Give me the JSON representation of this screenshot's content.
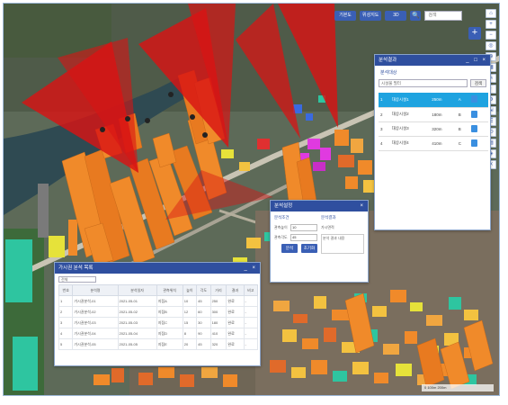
{
  "toolbar": {
    "buttons": [
      "기본도",
      "위성지도",
      "3D"
    ],
    "search_placeholder": "검색",
    "search_go": "🔍"
  },
  "right_tools": [
    "⌂",
    "+",
    "−",
    "◎",
    "⊕",
    "▦",
    "✎",
    "◐",
    "⚙",
    "⇲",
    "☰",
    "⟲",
    "▤",
    "◈",
    "✕"
  ],
  "plus_label": "+",
  "results_panel": {
    "title": "분석결과",
    "close": "_ □ ×",
    "subtitle": "분석대상",
    "filter_select": "시설물 필터",
    "filter_button": "검색",
    "rows": [
      [
        "1",
        "대상시설1",
        "250m",
        "A",
        "●"
      ],
      [
        "2",
        "대상시설2",
        "180m",
        "B",
        "●"
      ],
      [
        "3",
        "대상시설3",
        "320m",
        "B",
        "●"
      ],
      [
        "4",
        "대상시설4",
        "410m",
        "C",
        "●"
      ]
    ]
  },
  "analysis_popup": {
    "title": "분석설정",
    "close": "×",
    "left_title": "분석조건",
    "right_title": "분석결과",
    "fields": [
      {
        "label": "관측높이",
        "value": "10"
      },
      {
        "label": "관측각도",
        "value": "45"
      }
    ],
    "result_label": "가시면적",
    "note": "분석 결과 내용",
    "buttons": [
      "분석",
      "초기화"
    ]
  },
  "list_panel": {
    "title": "가시권 분석 목록",
    "close": "_ ×",
    "select": "전체",
    "headers": [
      "번호",
      "분석명",
      "분석일자",
      "관측위치",
      "높이",
      "각도",
      "거리",
      "결과",
      "비고"
    ],
    "rows": [
      [
        "1",
        "가시권분석-01",
        "2021-05-01",
        "지점A",
        "10",
        "45",
        "250",
        "완료",
        "-"
      ],
      [
        "2",
        "가시권분석-02",
        "2021-05-02",
        "지점B",
        "12",
        "60",
        "300",
        "완료",
        "-"
      ],
      [
        "3",
        "가시권분석-03",
        "2021-05-03",
        "지점C",
        "15",
        "30",
        "180",
        "완료",
        "-"
      ],
      [
        "4",
        "가시권분석-04",
        "2021-05-04",
        "지점D",
        "8",
        "90",
        "410",
        "완료",
        "-"
      ],
      [
        "5",
        "가시권분석-05",
        "2021-05-05",
        "지점E",
        "20",
        "45",
        "320",
        "완료",
        "-"
      ]
    ]
  },
  "scale": "0        100m        200m",
  "colors": {
    "header_blue": "#2f4f9f",
    "highlight": "#1ea3e0",
    "viewshed_red": "#d81414",
    "building_orange": "#f08a2a"
  }
}
